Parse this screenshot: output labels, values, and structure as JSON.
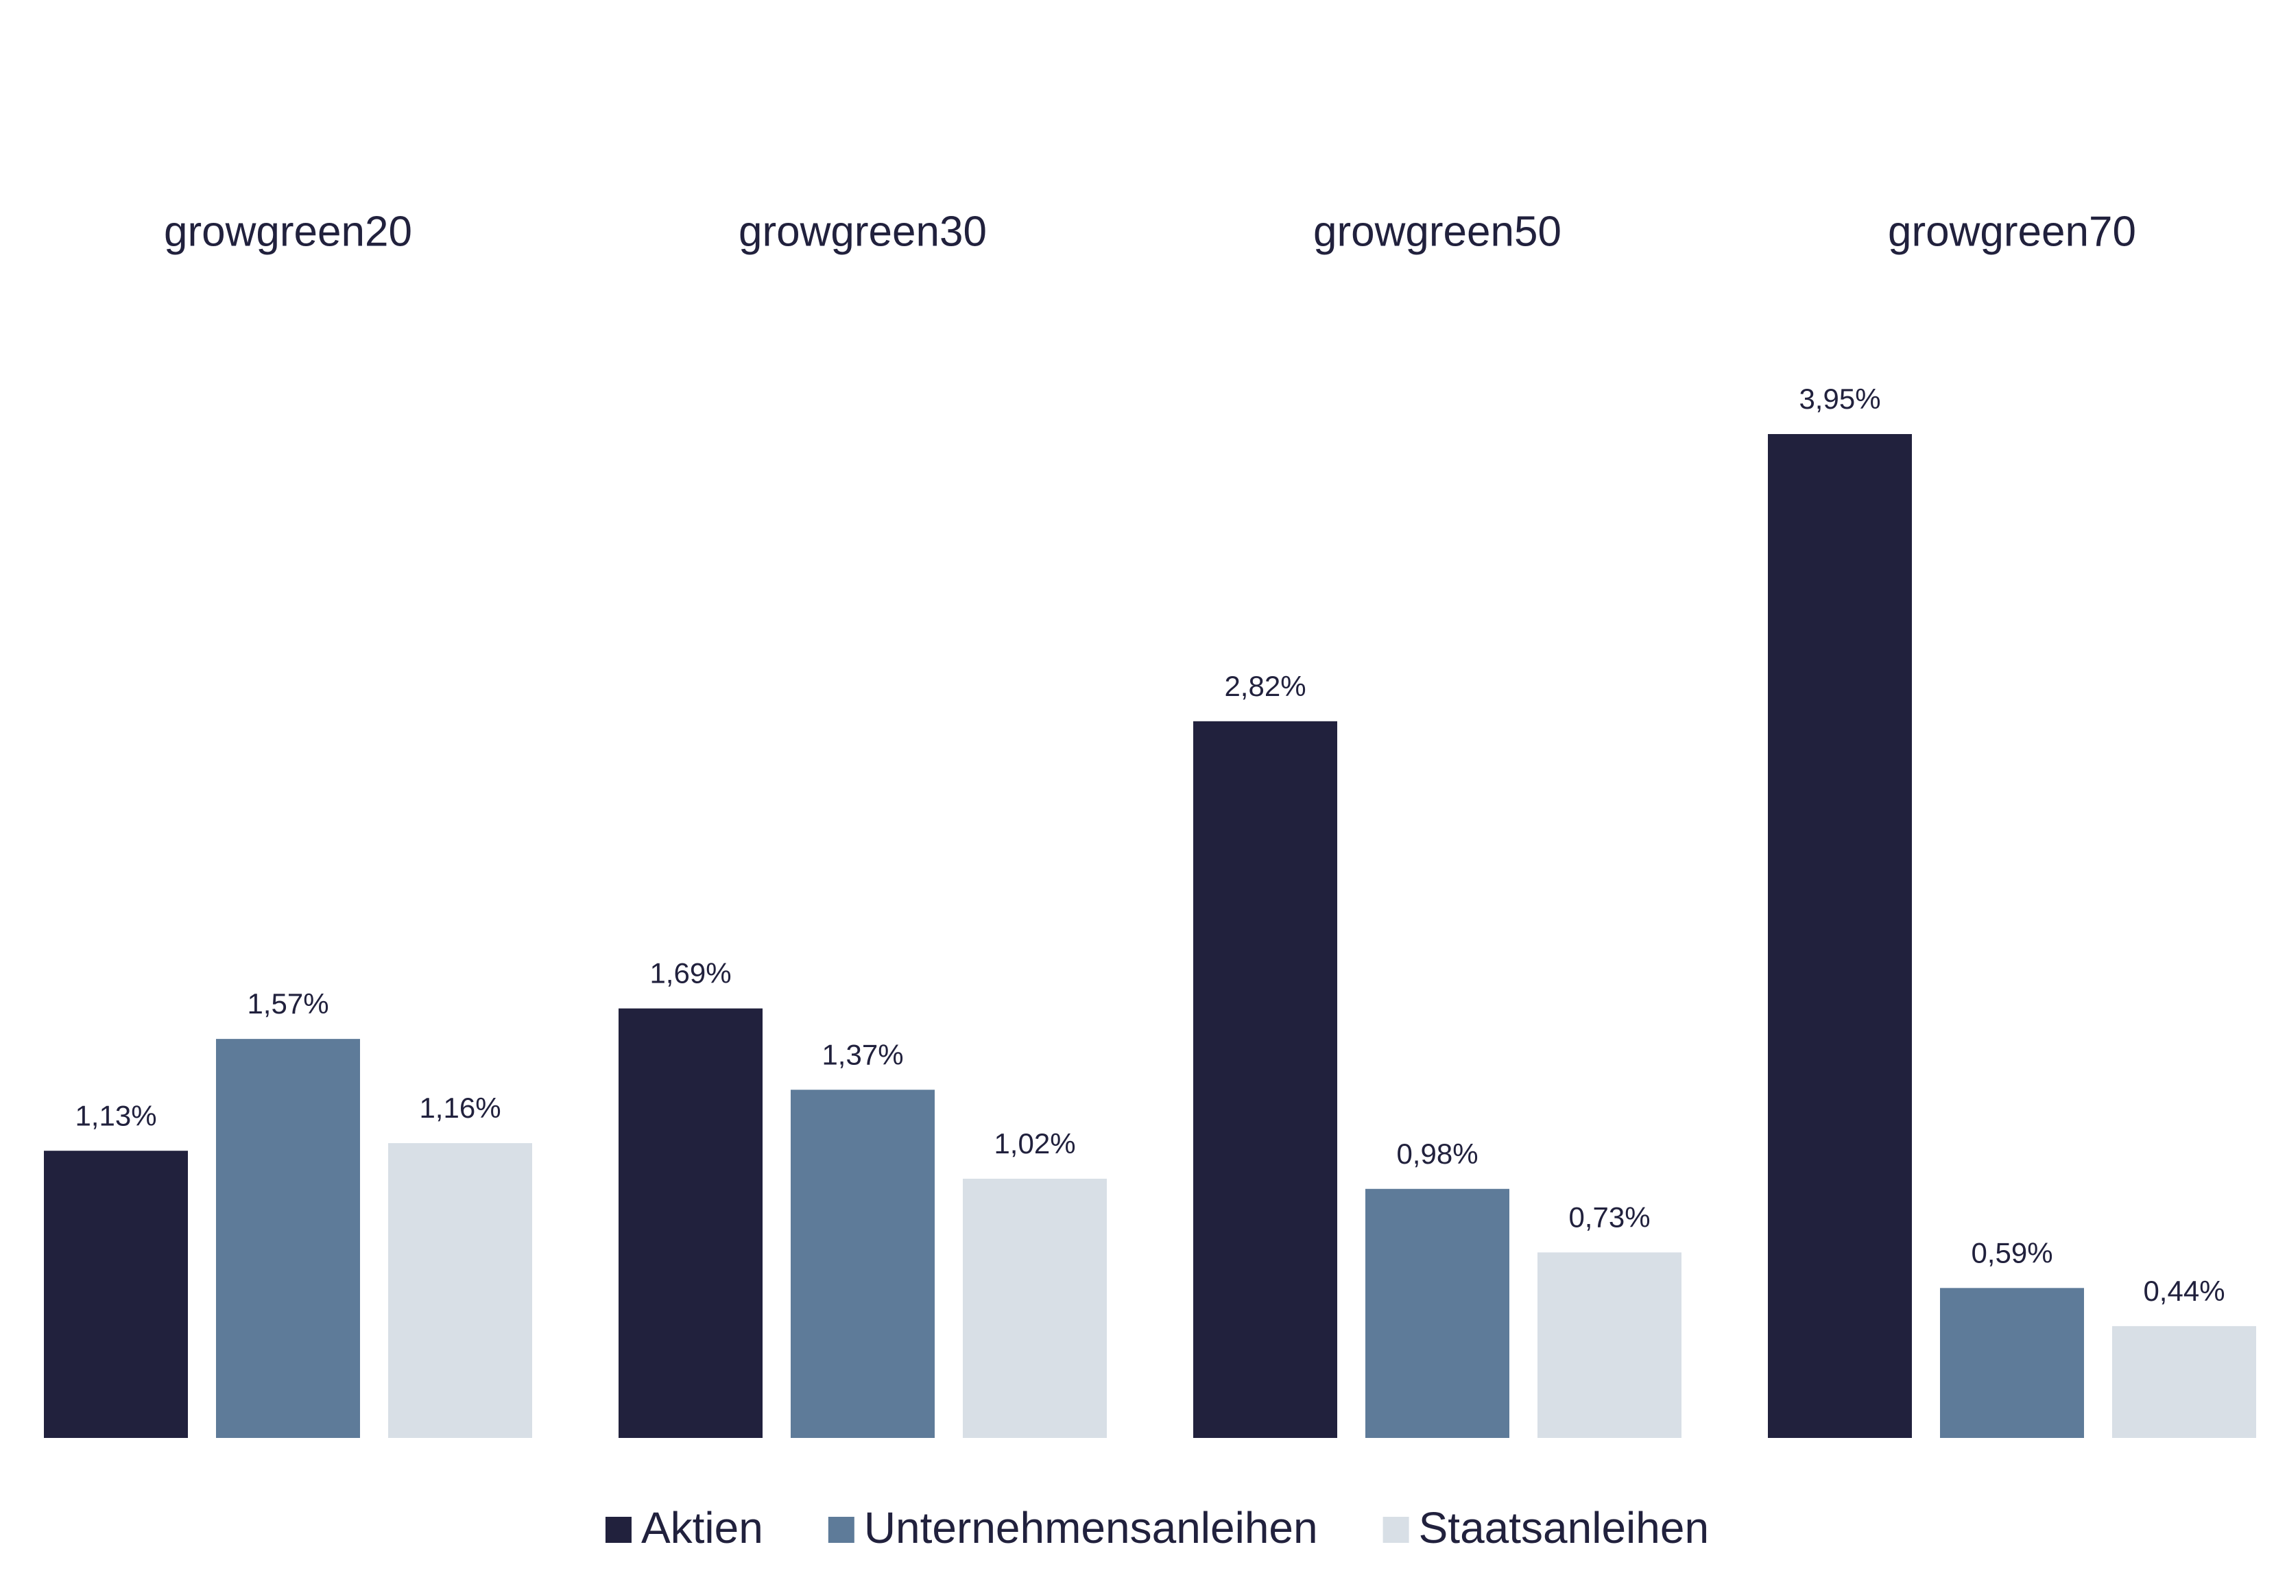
{
  "chart_data": {
    "type": "bar",
    "categories": [
      "growgreen20",
      "growgreen30",
      "growgreen50",
      "growgreen70"
    ],
    "series": [
      {
        "name": "Aktien",
        "color": "#21213d",
        "values": [
          1.13,
          1.69,
          2.82,
          3.95
        ],
        "value_labels": [
          "1,13%",
          "1,69%",
          "2,82%",
          "3,95%"
        ]
      },
      {
        "name": "Unternehmensanleihen",
        "color": "#5e7b99",
        "values": [
          1.57,
          1.37,
          0.98,
          0.59
        ],
        "value_labels": [
          "1,57%",
          "1,37%",
          "0,98%",
          "0,59%"
        ]
      },
      {
        "name": "Staatsanleihen",
        "color": "#d8dfe6",
        "values": [
          1.16,
          1.02,
          0.73,
          0.44
        ],
        "value_labels": [
          "1,16%",
          "1,02%",
          "0,73%",
          "0,44%"
        ]
      }
    ]
  }
}
